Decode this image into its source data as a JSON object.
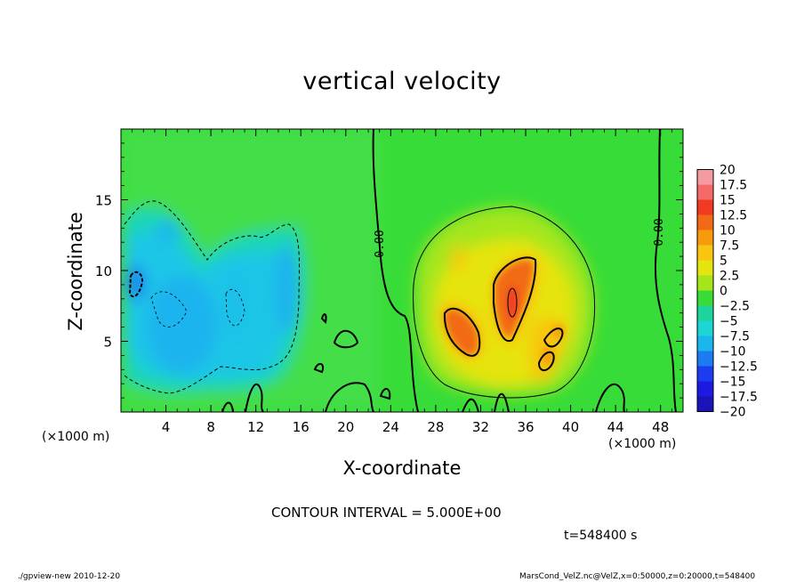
{
  "chart_data": {
    "type": "heatmap",
    "title": "vertical velocity",
    "xlabel": "X-coordinate",
    "ylabel": "Z-coordinate",
    "x_unit_label": "(×1000 m)",
    "xlim": [
      0,
      50
    ],
    "ylim": [
      0,
      20
    ],
    "x_ticks": [
      4,
      8,
      12,
      16,
      20,
      24,
      28,
      32,
      36,
      40,
      44,
      48
    ],
    "y_ticks": [
      5,
      10,
      15
    ],
    "contour_interval_text": "CONTOUR INTERVAL = 5.000E+00",
    "contour_labels": [
      "0.00",
      "0.00"
    ],
    "colorbar": {
      "labels": [
        "20",
        "17.5",
        "15",
        "12.5",
        "10",
        "7.5",
        "5",
        "2.5",
        "0",
        "−2.5",
        "−5",
        "−7.5",
        "−10",
        "−12.5",
        "−15",
        "−17.5",
        "−20"
      ],
      "colors": [
        "#f59aa0",
        "#f56a68",
        "#f03a22",
        "#f26a16",
        "#f79a0c",
        "#f9c50f",
        "#e6e40e",
        "#a4e61a",
        "#38dc38",
        "#1dd49c",
        "#1cd6d6",
        "#1cb6ee",
        "#1c7af2",
        "#1c3cf2",
        "#1c1ae0",
        "#1a14b8",
        "#7a18c8"
      ]
    }
  },
  "time_label": "t=548400 s",
  "footer_left": "./gpview-new  2010-12-20",
  "footer_right": "MarsCond_VelZ.nc@VelZ,x=0:50000,z=0:20000,t=548400"
}
